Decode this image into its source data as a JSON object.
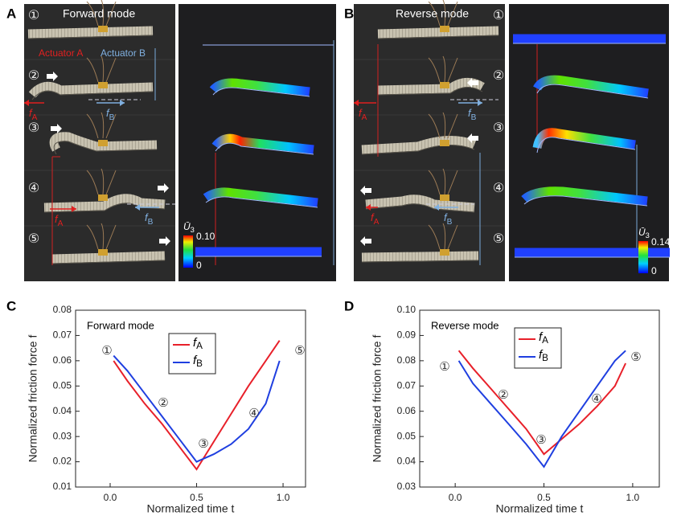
{
  "panels": [
    {
      "label": "A",
      "mode": "Forward mode",
      "steps": [
        "①",
        "②",
        "③",
        "④",
        "⑤"
      ],
      "actuators": [
        "Actuator A",
        "Actuator B"
      ],
      "forces": [
        "fA",
        "fB"
      ],
      "colorbar": {
        "title": "Ū3",
        "max": "0.10",
        "min": "0"
      }
    },
    {
      "label": "B",
      "mode": "Reverse mode",
      "steps": [
        "①",
        "②",
        "③",
        "④",
        "⑤"
      ],
      "forces": [
        "fA",
        "fB"
      ],
      "colorbar": {
        "title": "Ū3",
        "max": "0.14",
        "min": "0"
      }
    }
  ],
  "chart_data": [
    {
      "type": "line",
      "panel": "C",
      "annotation": "Forward mode",
      "markers": [
        "①",
        "②",
        "③",
        "④",
        "⑤"
      ],
      "x_label": "Normalized time t",
      "y_label": "Normalized friction force f",
      "x": [
        0.02,
        0.1,
        0.2,
        0.3,
        0.4,
        0.5,
        0.6,
        0.7,
        0.8,
        0.9,
        0.98
      ],
      "series": [
        {
          "name": "fA",
          "color": "#e8202a",
          "values": [
            0.06,
            0.052,
            0.043,
            0.035,
            0.026,
            0.017,
            0.028,
            0.039,
            0.05,
            0.06,
            0.068
          ]
        },
        {
          "name": "fB",
          "color": "#1f3fe0",
          "values": [
            0.062,
            0.056,
            0.047,
            0.038,
            0.029,
            0.02,
            0.023,
            0.027,
            0.033,
            0.043,
            0.06
          ]
        }
      ],
      "xlim": [
        -0.2,
        1.13
      ],
      "xticks": [
        {
          "value": 0,
          "label": "0.0"
        },
        0.5,
        {
          "value": 1,
          "label": "1.0"
        }
      ],
      "ylim": [
        0.01,
        0.08
      ],
      "yticks": [
        0.01,
        0.02,
        0.03,
        0.04,
        0.05,
        0.06,
        0.07,
        0.08
      ]
    },
    {
      "type": "line",
      "panel": "D",
      "annotation": "Reverse mode",
      "markers": [
        "①",
        "②",
        "③",
        "④",
        "⑤"
      ],
      "x_label": "Normalized time t",
      "y_label": "Normalized friction force f",
      "x": [
        0.02,
        0.1,
        0.2,
        0.3,
        0.4,
        0.5,
        0.6,
        0.7,
        0.8,
        0.9,
        0.96
      ],
      "series": [
        {
          "name": "fA",
          "color": "#e8202a",
          "values": [
            0.084,
            0.077,
            0.069,
            0.061,
            0.053,
            0.043,
            0.049,
            0.055,
            0.062,
            0.07,
            0.079
          ]
        },
        {
          "name": "fB",
          "color": "#1f3fe0",
          "values": [
            0.08,
            0.071,
            0.063,
            0.055,
            0.047,
            0.038,
            0.05,
            0.06,
            0.07,
            0.08,
            0.084
          ]
        }
      ],
      "xlim": [
        -0.2,
        1.15
      ],
      "xticks": [
        {
          "value": 0,
          "label": "0.0"
        },
        0.5,
        {
          "value": 1,
          "label": "1.0"
        }
      ],
      "ylim": [
        0.03,
        0.1
      ],
      "yticks": [
        0.03,
        0.04,
        0.05,
        0.06,
        0.07,
        0.08,
        0.09,
        {
          "value": 0.1,
          "label": "0.10"
        }
      ]
    }
  ]
}
